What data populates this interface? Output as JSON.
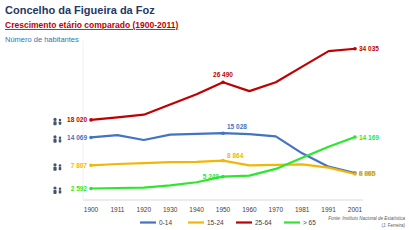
{
  "chart_data": {
    "type": "line",
    "title": "Concelho da Figueira da Foz",
    "subtitle": "Crescimento etário comparado (1900-2011)",
    "y_label": "Número de habitantes",
    "source": "Fonte: Instituto Nacional de Estatística",
    "credit": "(J. Ferreira)",
    "categories": [
      "1900",
      "1911",
      "1920",
      "1930",
      "1940",
      "1950",
      "1960",
      "1970",
      "1981",
      "1991",
      "2001"
    ],
    "ylim": [
      0,
      36000
    ],
    "yticks": [],
    "tick_labels": "x",
    "grid": false,
    "legend": "bottom",
    "data_labels": true,
    "series": [
      {
        "name": "0-14",
        "color": "#4472c4",
        "values": [
          14069,
          14600,
          13500,
          14700,
          14900,
          15028,
          14800,
          14300,
          10500,
          7500,
          6065
        ],
        "value_labels": [
          "14 069",
          null,
          null,
          null,
          null,
          "15 028",
          null,
          null,
          null,
          null,
          "6 065"
        ]
      },
      {
        "name": "15-24",
        "color": "#f2b705",
        "values": [
          7807,
          8100,
          8300,
          8500,
          8600,
          8864,
          7800,
          7900,
          8000,
          7300,
          5856
        ],
        "value_labels": [
          "7 807",
          null,
          null,
          null,
          null,
          "8 864",
          null,
          null,
          null,
          null,
          "5 856"
        ]
      },
      {
        "name": "25-64",
        "color": "#c00000",
        "values": [
          18020,
          18600,
          19200,
          21500,
          23800,
          26490,
          24500,
          26500,
          30000,
          33500,
          34035
        ],
        "value_labels": [
          "18 020",
          null,
          null,
          null,
          null,
          "26 490",
          null,
          null,
          null,
          null,
          "34 035"
        ]
      },
      {
        "name": "> 65",
        "color": "#2ee62e",
        "values": [
          2592,
          2700,
          2800,
          3300,
          4000,
          5249,
          5500,
          7000,
          9500,
          12000,
          14169
        ],
        "value_labels": [
          "2 592",
          null,
          null,
          null,
          null,
          "5 249",
          null,
          null,
          null,
          null,
          "14 169"
        ]
      }
    ]
  }
}
